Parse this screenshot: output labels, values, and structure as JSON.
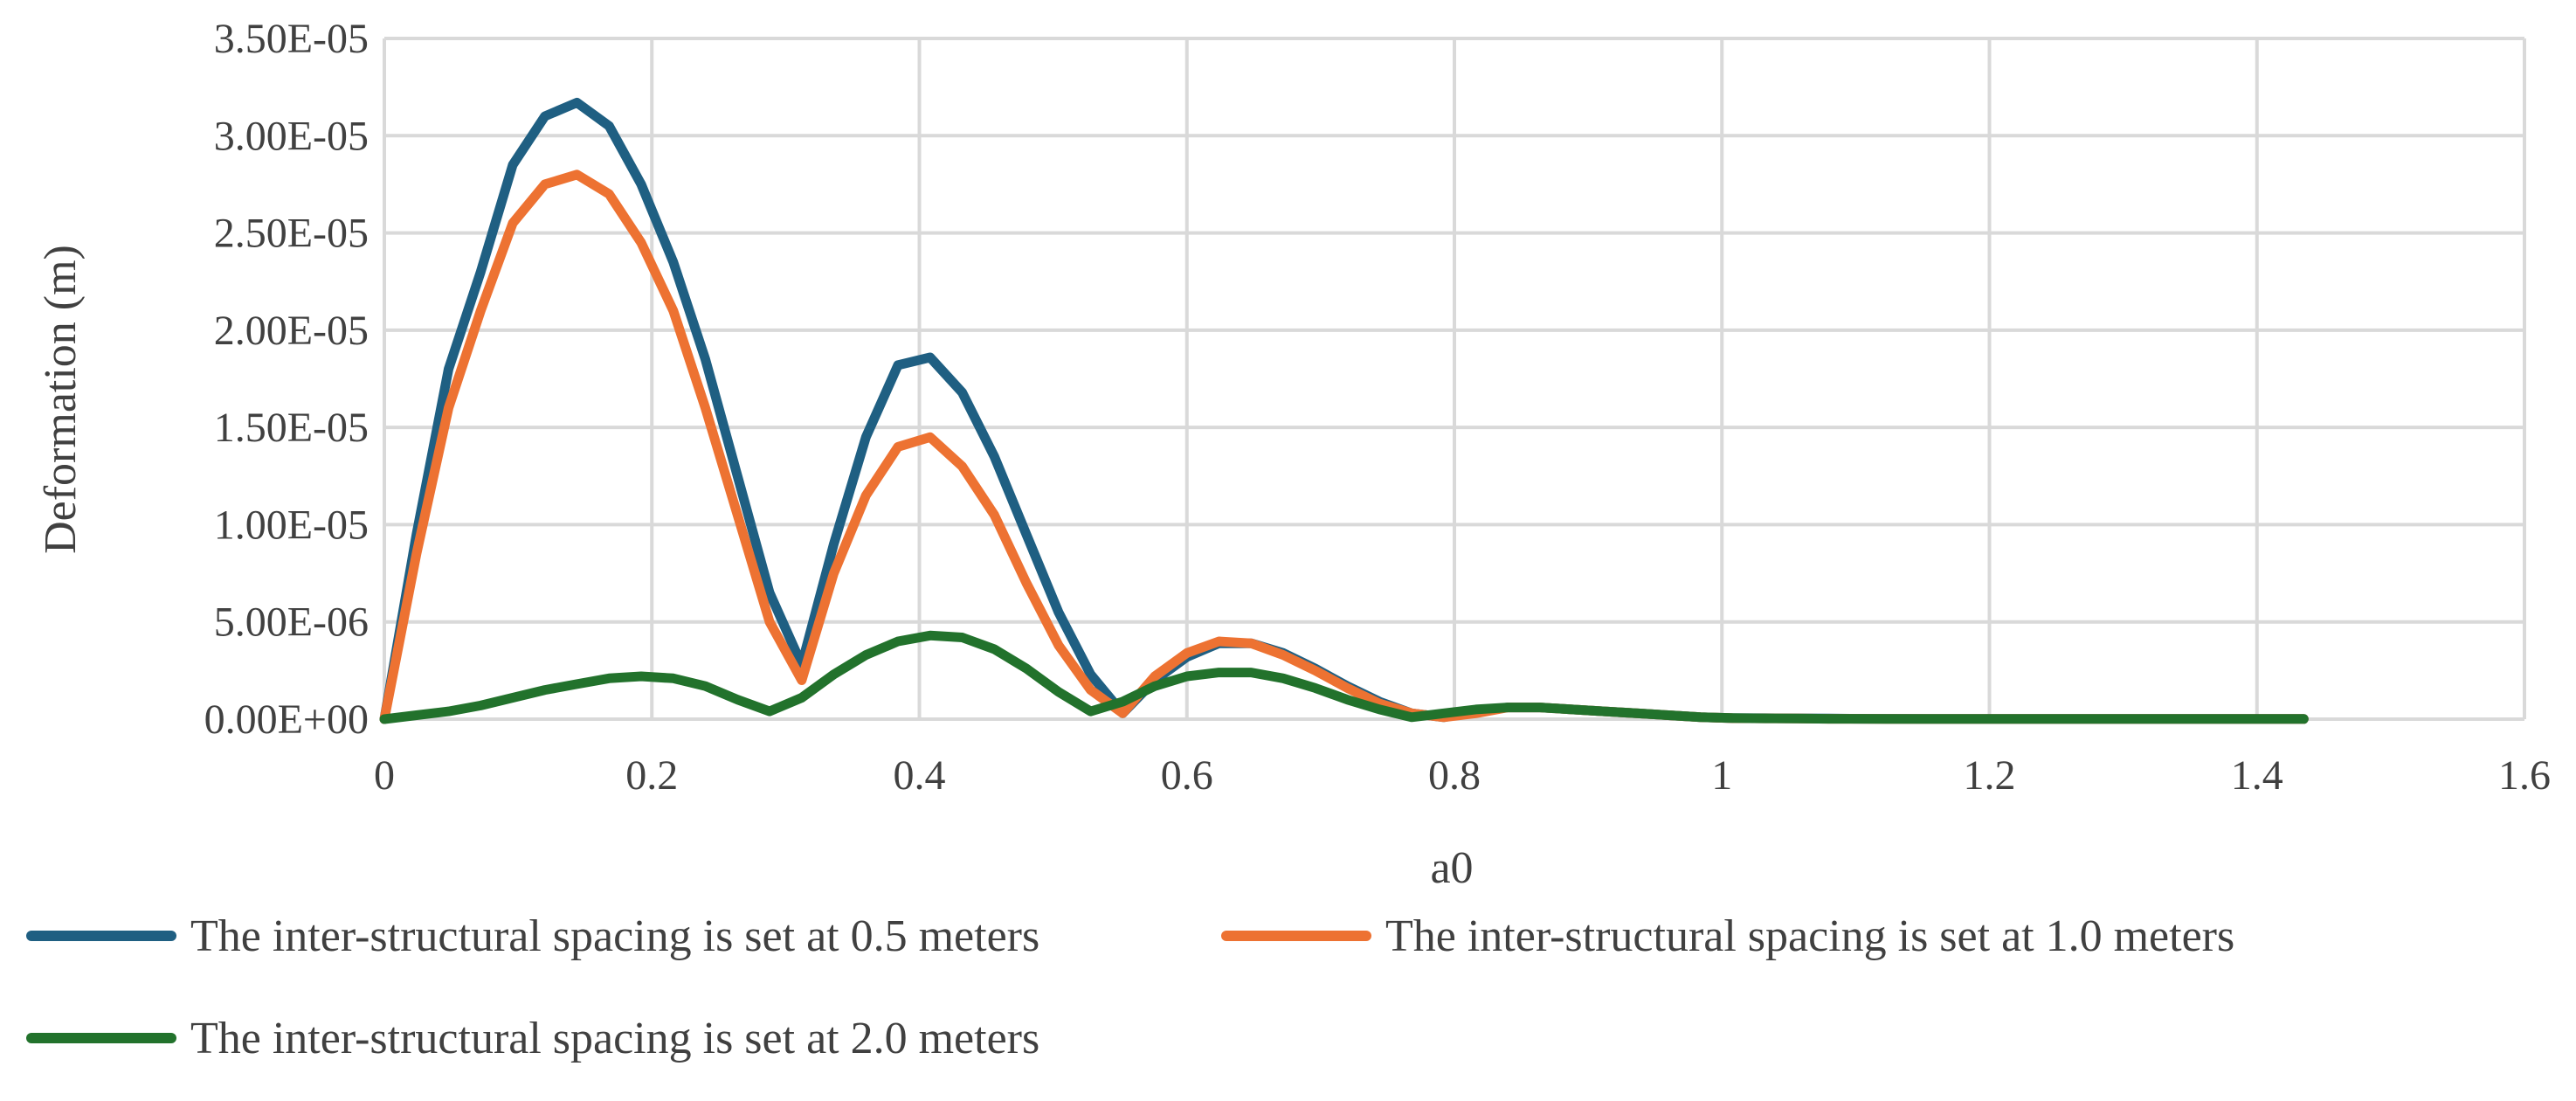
{
  "chart_data": {
    "type": "line",
    "title": "",
    "xlabel": "a0",
    "ylabel": "Deformation (m)",
    "xlim": [
      0,
      1.6
    ],
    "ylim": [
      0,
      3.5e-05
    ],
    "x_ticks": [
      0,
      0.2,
      0.4,
      0.6,
      0.8,
      1,
      1.2,
      1.4,
      1.6
    ],
    "x_tick_labels": [
      "0",
      "0.2",
      "0.4",
      "0.6",
      "0.8",
      "1",
      "1.2",
      "1.4",
      "1.6"
    ],
    "y_ticks": [
      0,
      5e-06,
      1e-05,
      1.5e-05,
      2e-05,
      2.5e-05,
      3e-05,
      3.5e-05
    ],
    "y_tick_labels": [
      "0.00E+00",
      "5.00E-06",
      "1.00E-05",
      "1.50E-05",
      "2.00E-05",
      "2.50E-05",
      "3.00E-05",
      "3.50E-05"
    ],
    "grid": true,
    "legend_position": "bottom",
    "series": [
      {
        "name": "The inter-structural spacing is set at 0.5 meters",
        "color": "#1F5F82",
        "x": [
          0,
          0.024,
          0.048,
          0.072,
          0.096,
          0.12,
          0.144,
          0.168,
          0.192,
          0.216,
          0.24,
          0.264,
          0.288,
          0.312,
          0.336,
          0.36,
          0.384,
          0.408,
          0.432,
          0.456,
          0.48,
          0.504,
          0.528,
          0.552,
          0.576,
          0.6,
          0.624,
          0.648,
          0.672,
          0.696,
          0.72,
          0.744,
          0.768,
          0.792,
          0.816,
          0.84,
          0.864,
          0.888,
          0.912,
          0.936,
          0.96,
          0.984,
          1.008,
          1.032,
          1.056,
          1.08,
          1.104,
          1.128,
          1.152,
          1.176,
          1.2,
          1.224,
          1.248,
          1.272,
          1.296,
          1.32,
          1.344,
          1.368,
          1.392,
          1.416,
          1.435
        ],
        "y": [
          0,
          9.5e-06,
          1.8e-05,
          2.3e-05,
          2.85e-05,
          3.1e-05,
          3.17e-05,
          3.05e-05,
          2.75e-05,
          2.35e-05,
          1.85e-05,
          1.25e-05,
          6.5e-06,
          2.8e-06,
          9e-06,
          1.45e-05,
          1.82e-05,
          1.86e-05,
          1.68e-05,
          1.35e-05,
          9.5e-06,
          5.5e-06,
          2.3e-06,
          3e-07,
          2e-06,
          3.2e-06,
          3.9e-06,
          3.9e-06,
          3.4e-06,
          2.6e-06,
          1.7e-06,
          9e-07,
          3e-07,
          1e-07,
          4e-07,
          6e-07,
          6e-07,
          5e-07,
          4e-07,
          3e-07,
          2e-07,
          1e-07,
          5e-08,
          5e-08,
          4e-08,
          3e-08,
          2e-08,
          2e-08,
          1e-08,
          1e-08,
          1e-08,
          1e-08,
          1e-08,
          1e-08,
          1e-08,
          1e-08,
          1e-08,
          1e-08,
          1e-08,
          1e-08,
          1e-08
        ]
      },
      {
        "name": "The inter-structural spacing is set at 1.0 meters",
        "color": "#ED7232",
        "x": [
          0,
          0.024,
          0.048,
          0.072,
          0.096,
          0.12,
          0.144,
          0.168,
          0.192,
          0.216,
          0.24,
          0.264,
          0.288,
          0.312,
          0.336,
          0.36,
          0.384,
          0.408,
          0.432,
          0.456,
          0.48,
          0.504,
          0.528,
          0.552,
          0.576,
          0.6,
          0.624,
          0.648,
          0.672,
          0.696,
          0.72,
          0.744,
          0.768,
          0.792,
          0.816,
          0.84,
          0.864,
          0.888,
          0.912,
          0.936,
          0.96,
          0.984,
          1.008,
          1.032,
          1.056,
          1.08,
          1.104,
          1.128,
          1.152,
          1.176,
          1.2,
          1.224,
          1.248,
          1.272,
          1.296,
          1.32,
          1.344,
          1.368,
          1.392,
          1.416,
          1.435
        ],
        "y": [
          0,
          8.5e-06,
          1.6e-05,
          2.1e-05,
          2.55e-05,
          2.75e-05,
          2.8e-05,
          2.7e-05,
          2.45e-05,
          2.1e-05,
          1.6e-05,
          1.05e-05,
          5e-06,
          2e-06,
          7.5e-06,
          1.15e-05,
          1.4e-05,
          1.45e-05,
          1.3e-05,
          1.05e-05,
          7e-06,
          3.8e-06,
          1.5e-06,
          3e-07,
          2.2e-06,
          3.4e-06,
          4e-06,
          3.9e-06,
          3.3e-06,
          2.5e-06,
          1.6e-06,
          8e-07,
          3e-07,
          1e-07,
          3e-07,
          6e-07,
          6e-07,
          5e-07,
          4e-07,
          3e-07,
          2e-07,
          1e-07,
          5e-08,
          4e-08,
          3e-08,
          2e-08,
          2e-08,
          1e-08,
          1e-08,
          1e-08,
          1e-08,
          1e-08,
          1e-08,
          1e-08,
          1e-08,
          1e-08,
          1e-08,
          1e-08,
          1e-08,
          1e-08,
          1e-08
        ]
      },
      {
        "name": "The inter-structural spacing is set at 2.0 meters",
        "color": "#22722C",
        "x": [
          0,
          0.024,
          0.048,
          0.072,
          0.096,
          0.12,
          0.144,
          0.168,
          0.192,
          0.216,
          0.24,
          0.264,
          0.288,
          0.312,
          0.336,
          0.36,
          0.384,
          0.408,
          0.432,
          0.456,
          0.48,
          0.504,
          0.528,
          0.552,
          0.576,
          0.6,
          0.624,
          0.648,
          0.672,
          0.696,
          0.72,
          0.744,
          0.768,
          0.792,
          0.816,
          0.84,
          0.864,
          0.888,
          0.912,
          0.936,
          0.96,
          0.984,
          1.008,
          1.032,
          1.056,
          1.08,
          1.104,
          1.128,
          1.152,
          1.176,
          1.2,
          1.224,
          1.248,
          1.272,
          1.296,
          1.32,
          1.344,
          1.368,
          1.392,
          1.416,
          1.435
        ],
        "y": [
          0,
          2e-07,
          4e-07,
          7e-07,
          1.1e-06,
          1.5e-06,
          1.8e-06,
          2.1e-06,
          2.2e-06,
          2.1e-06,
          1.7e-06,
          1e-06,
          4e-07,
          1.1e-06,
          2.3e-06,
          3.3e-06,
          4e-06,
          4.3e-06,
          4.2e-06,
          3.6e-06,
          2.6e-06,
          1.4e-06,
          4e-07,
          9e-07,
          1.7e-06,
          2.2e-06,
          2.4e-06,
          2.4e-06,
          2.1e-06,
          1.6e-06,
          1e-06,
          5e-07,
          1e-07,
          3e-07,
          5e-07,
          6e-07,
          6e-07,
          5e-07,
          4e-07,
          3e-07,
          2e-07,
          1e-07,
          6e-08,
          4e-08,
          3e-08,
          2e-08,
          2e-08,
          1e-08,
          1e-08,
          1e-08,
          1e-08,
          1e-08,
          1e-08,
          1e-08,
          1e-08,
          1e-08,
          1e-08,
          1e-08,
          1e-08,
          1e-08,
          1e-08
        ]
      }
    ]
  }
}
